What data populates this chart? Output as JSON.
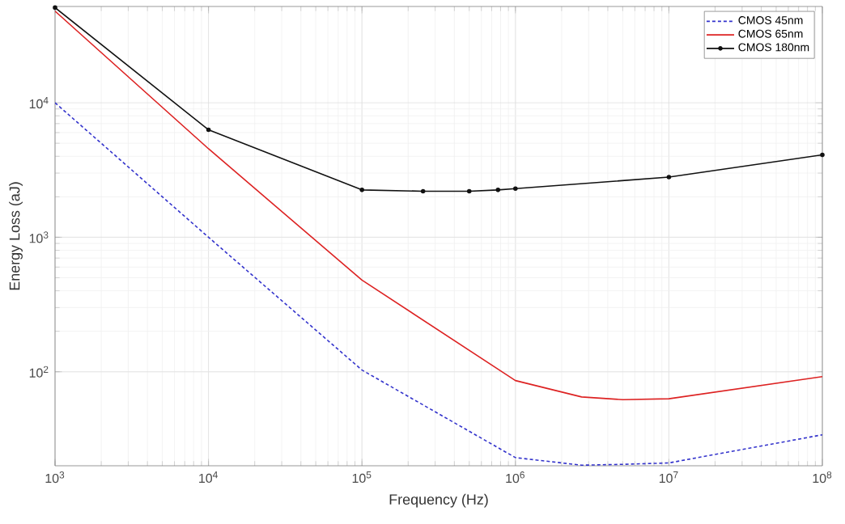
{
  "chart_data": {
    "type": "line",
    "xlabel": "Frequency (Hz)",
    "ylabel": "Energy Loss (aJ)",
    "log": "xy",
    "grid": true,
    "legend": "top right",
    "xlim": [
      1000,
      100000000
    ],
    "ylim": [
      20,
      52000
    ],
    "xticks": [
      {
        "value": 1000,
        "label": "10$^{3}$"
      },
      {
        "value": 10000,
        "label": "10$^{4}$"
      },
      {
        "value": 100000,
        "label": "10$^{5}$"
      },
      {
        "value": 1000000,
        "label": "10$^{6}$"
      },
      {
        "value": 10000000,
        "label": "10$^{7}$"
      },
      {
        "value": 100000000,
        "label": "10$^{8}$"
      }
    ],
    "yticks": [
      {
        "value": 100,
        "label": "10$^{2}$"
      },
      {
        "value": 1000,
        "label": "10$^{3}$"
      },
      {
        "value": 10000,
        "label": "10$^{4}$"
      }
    ],
    "series": [
      {
        "name": "CMOS 45nm",
        "color": "#3333cc",
        "line_style": "dashed",
        "marker": "none",
        "x": [
          1000,
          10000,
          100000,
          1000000,
          2700000,
          5000000,
          10000000,
          100000000
        ],
        "values": [
          10000,
          1000,
          103,
          23,
          20.2,
          20.5,
          21,
          34
        ]
      },
      {
        "name": "CMOS 65nm",
        "color": "#dd2222",
        "line_style": "solid",
        "marker": "none",
        "x": [
          1000,
          10000,
          100000,
          1000000,
          2700000,
          5000000,
          10000000,
          100000000
        ],
        "values": [
          48000,
          4550,
          480,
          86,
          65,
          62,
          63,
          92
        ]
      },
      {
        "name": "CMOS 180nm",
        "color": "#111111",
        "line_style": "solid",
        "marker": "circle",
        "x": [
          1000,
          10000,
          100000,
          250000,
          500000,
          770000,
          1000000,
          10000000,
          100000000
        ],
        "values": [
          51000,
          6300,
          2250,
          2200,
          2200,
          2250,
          2300,
          2800,
          4100
        ]
      }
    ]
  }
}
